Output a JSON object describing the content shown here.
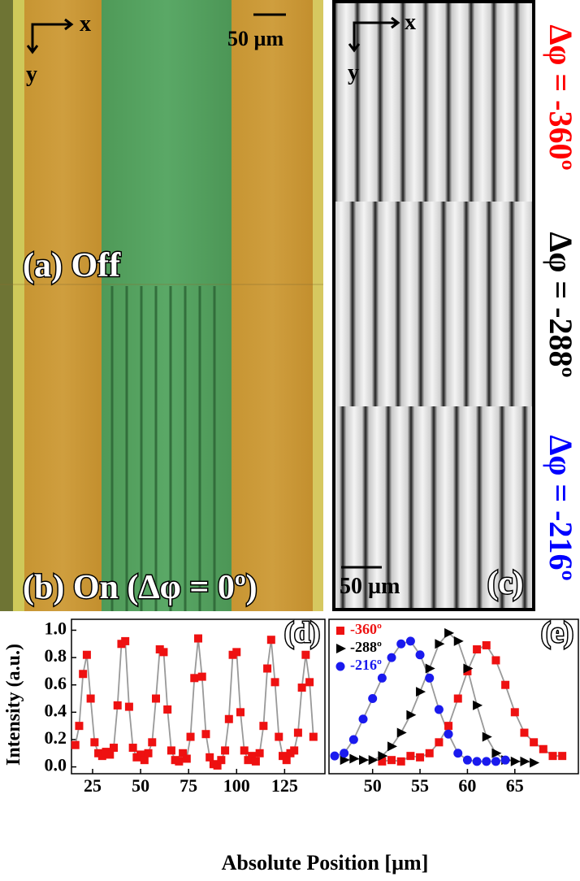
{
  "panels": {
    "axis_x": "x",
    "axis_y": "y",
    "a_label": "(a) Off",
    "b_label": "(b) On (Δφ = 0º)",
    "a_scale": "50 µm",
    "c_label": "(c)",
    "c_scale": "50 µm",
    "c_phases": [
      {
        "text": "Δφ = -360º",
        "color": "#ff0000"
      },
      {
        "text": "Δφ = -288º",
        "color": "#000000"
      },
      {
        "text": "Δφ = -216º",
        "color": "#0000ff"
      }
    ]
  },
  "chart_data": [
    {
      "type": "scatter",
      "title": "(d)",
      "ylabel": "Intensity (a.u.)",
      "xlabel": "Absolute Position [µm]",
      "xlim": [
        14,
        146
      ],
      "xticks": [
        25,
        50,
        75,
        100,
        125
      ],
      "ylim": [
        -0.05,
        1.08
      ],
      "yticks": [
        {
          "value": 0,
          "label": "0.0"
        },
        0.2,
        0.4,
        0.6,
        0.8,
        {
          "value": 1,
          "label": "1.0"
        }
      ],
      "fit_color": "#999999",
      "x": [
        16,
        18,
        20,
        22,
        24,
        26,
        28,
        30,
        32,
        34,
        36,
        38,
        40,
        42,
        44,
        46,
        48,
        50,
        52,
        54,
        56,
        58,
        60,
        62,
        64,
        66,
        68,
        70,
        72,
        74,
        76,
        78,
        80,
        82,
        84,
        86,
        88,
        90,
        92,
        94,
        96,
        98,
        100,
        102,
        104,
        106,
        108,
        110,
        112,
        114,
        116,
        118,
        120,
        122,
        124,
        126,
        128,
        130,
        132,
        134,
        136,
        138,
        140
      ],
      "series": [
        {
          "color": "#ee1111",
          "marker": "square",
          "values": [
            0.16,
            0.3,
            0.68,
            0.82,
            0.5,
            0.18,
            0.1,
            0.08,
            0.11,
            0.09,
            0.14,
            0.45,
            0.9,
            0.92,
            0.44,
            0.14,
            0.07,
            0.09,
            0.05,
            0.1,
            0.18,
            0.5,
            0.86,
            0.84,
            0.42,
            0.12,
            0.05,
            0.04,
            0.1,
            0.06,
            0.22,
            0.65,
            0.94,
            0.66,
            0.24,
            0.07,
            0.02,
            0.01,
            0.05,
            0.12,
            0.35,
            0.82,
            0.84,
            0.4,
            0.12,
            0.05,
            0.08,
            0.04,
            0.1,
            0.3,
            0.72,
            0.93,
            0.62,
            0.22,
            0.08,
            0.05,
            0.1,
            0.12,
            0.25,
            0.58,
            0.82,
            0.62,
            0.22
          ]
        }
      ]
    },
    {
      "type": "scatter",
      "title": "(e)",
      "xlim": [
        45.4,
        71.7
      ],
      "xticks": [
        50,
        55,
        60,
        65
      ],
      "ylim": [
        -0.05,
        1.08
      ],
      "fit_color": "#999999",
      "x": [
        46,
        47,
        48,
        49,
        50,
        51,
        52,
        53,
        54,
        55,
        56,
        57,
        58,
        59,
        60,
        61,
        62,
        63,
        64,
        65,
        66,
        67,
        68,
        69,
        70
      ],
      "series": [
        {
          "name": "-360º",
          "color": "#ee1111",
          "marker": "square",
          "values": [
            null,
            null,
            null,
            null,
            null,
            0.04,
            0.05,
            0.04,
            0.08,
            0.07,
            0.1,
            0.18,
            0.3,
            0.5,
            0.7,
            0.86,
            0.89,
            0.78,
            0.6,
            0.4,
            0.25,
            0.18,
            0.13,
            0.08,
            0.08
          ]
        },
        {
          "name": "-288º",
          "color": "#000000",
          "marker": "triangle",
          "values": [
            null,
            0.05,
            0.06,
            0.05,
            0.05,
            0.08,
            0.15,
            0.25,
            0.38,
            0.55,
            0.72,
            0.9,
            0.98,
            0.92,
            0.72,
            0.45,
            0.22,
            0.1,
            0.05,
            0.04,
            0.04,
            0.03,
            null,
            null,
            null
          ]
        },
        {
          "name": "-216º",
          "color": "#1a1aee",
          "marker": "circle",
          "values": [
            0.08,
            0.1,
            0.2,
            0.35,
            0.5,
            0.65,
            0.8,
            0.9,
            0.92,
            0.82,
            0.65,
            0.42,
            0.24,
            0.1,
            0.05,
            0.04,
            0.04,
            0.04,
            0.05,
            null,
            null,
            null,
            null,
            null,
            null
          ]
        }
      ]
    }
  ]
}
